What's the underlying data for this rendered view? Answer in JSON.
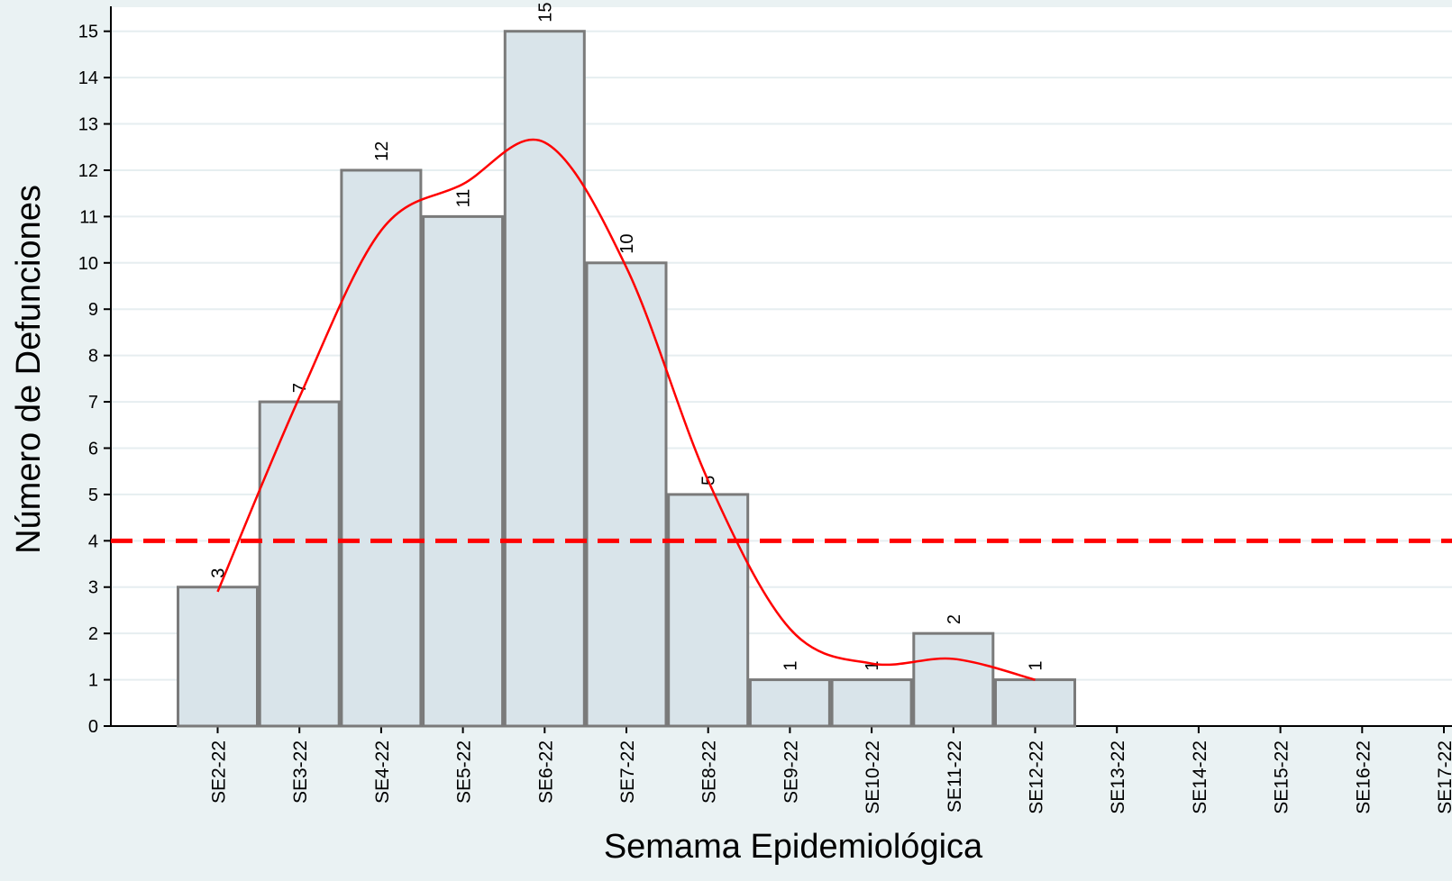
{
  "chart_data": {
    "type": "bar",
    "x_label": "Semama Epidemiológica",
    "y_label": "Número de Defunciones",
    "categories": [
      "SE2-22",
      "SE3-22",
      "SE4-22",
      "SE5-22",
      "SE6-22",
      "SE7-22",
      "SE8-22",
      "SE9-22",
      "SE10-22",
      "SE11-22",
      "SE12-22",
      "SE13-22",
      "SE14-22",
      "SE15-22",
      "SE16-22",
      "SE17-22"
    ],
    "series": [
      {
        "type": "bar",
        "color": "#d9e4ea",
        "values": [
          3,
          7,
          12,
          11,
          15,
          10,
          5,
          1,
          1,
          2,
          1,
          null,
          null,
          null,
          null,
          null
        ]
      },
      {
        "type": "line",
        "color": "#ff0000",
        "values": [
          2.9,
          7.1,
          10.7,
          11.7,
          12.6,
          9.9,
          5.3,
          2.1,
          1.35,
          1.45,
          1.0,
          null,
          null,
          null,
          null,
          null
        ]
      }
    ],
    "reference_line": {
      "value": 4,
      "color": "#ff0000"
    },
    "ylim": [
      0,
      15.5
    ],
    "yticks": [
      0,
      1,
      2,
      3,
      4,
      5,
      6,
      7,
      8,
      9,
      10,
      11,
      12,
      13,
      14,
      15
    ],
    "grid": true
  }
}
